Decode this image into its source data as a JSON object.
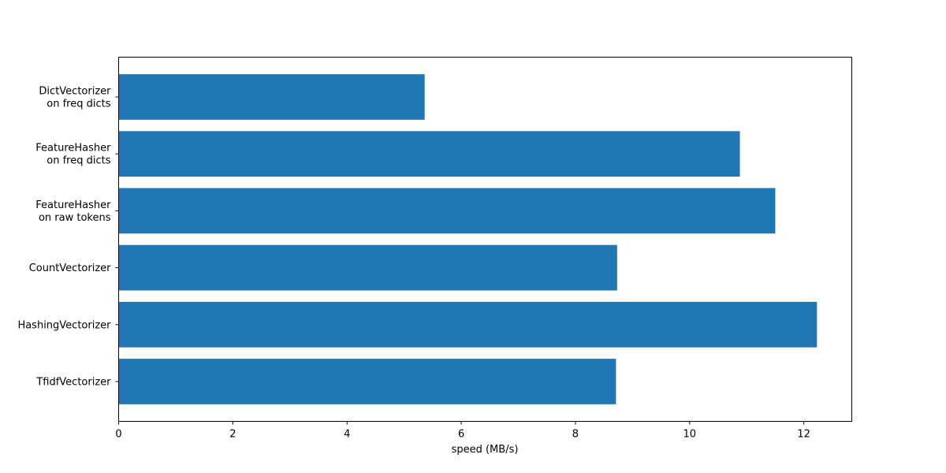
{
  "chart_data": {
    "type": "bar",
    "orientation": "horizontal",
    "categories": [
      [
        "DictVectorizer",
        "on freq dicts"
      ],
      [
        "FeatureHasher",
        "on freq dicts"
      ],
      [
        "FeatureHasher",
        "on raw tokens"
      ],
      [
        "CountVectorizer"
      ],
      [
        "HashingVectorizer"
      ],
      [
        "TfidfVectorizer"
      ]
    ],
    "values": [
      5.36,
      10.88,
      11.5,
      8.73,
      12.23,
      8.71
    ],
    "xlabel": "speed (MB/s)",
    "xlim": [
      0,
      12.84
    ],
    "xticks": [
      0,
      2,
      4,
      6,
      8,
      10,
      12
    ],
    "bar_color": "#1f77b4",
    "grid": false,
    "legend": "none"
  }
}
